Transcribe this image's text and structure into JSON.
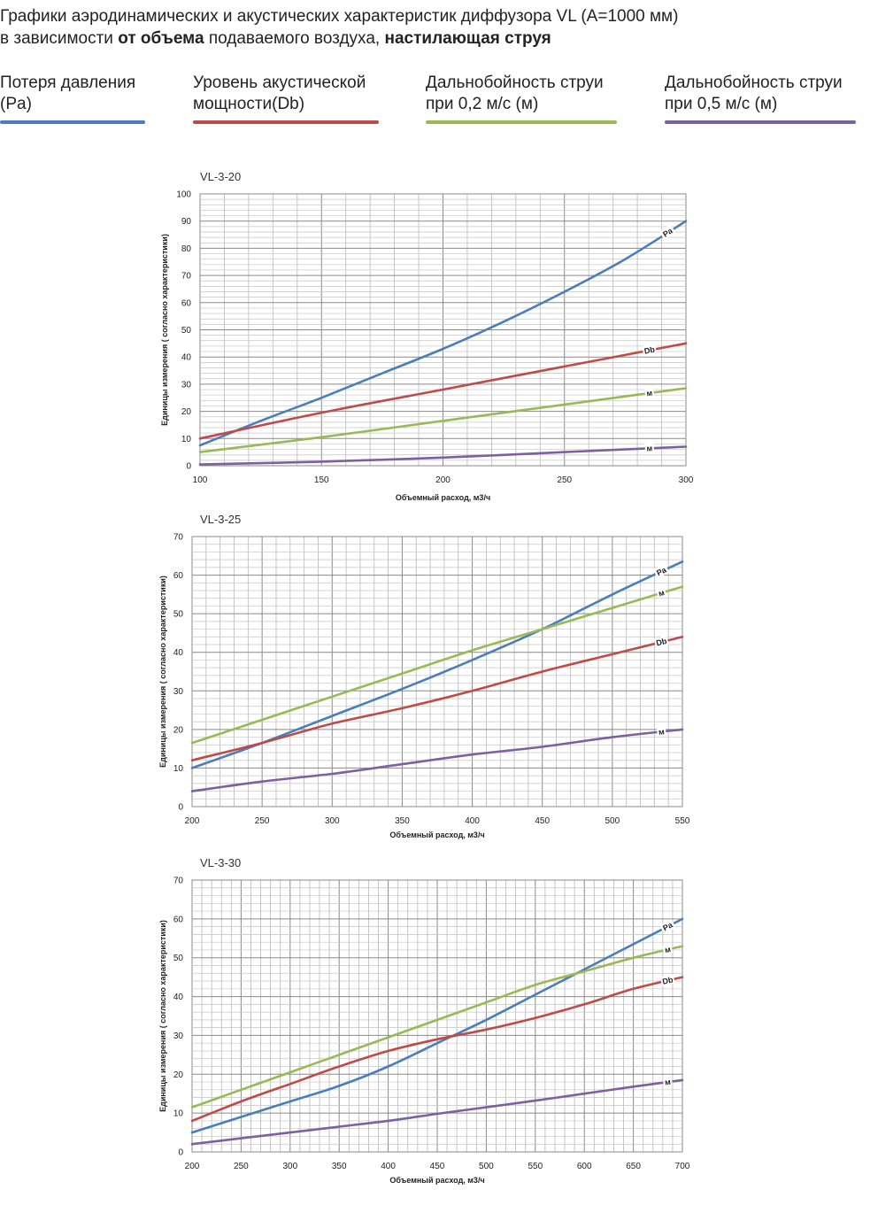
{
  "header": {
    "line1": "Графики аэродинамических и акустических характеристик  диффузора VL (A=1000 мм)",
    "line2_a": "в зависимости ",
    "line2_b": "от объема",
    "line2_c": " подаваемого воздуха, ",
    "line2_d": "настилающая струя"
  },
  "legend": [
    {
      "line1": "Потеря давления",
      "line2": "(Pa)",
      "color": "#4a7ebb"
    },
    {
      "line1": "Уровень акустической",
      "line2": "мощности(Db)",
      "color": "#be4b48"
    },
    {
      "line1": "Дальнобойность струи",
      "line2": "при 0,2 м/с (м)",
      "color": "#98b954"
    },
    {
      "line1": "Дальнобойность струи",
      "line2": "при 0,5 м/с (м)",
      "color": "#7d60a0"
    }
  ],
  "chart_data": [
    {
      "type": "line",
      "title": "VL-3-20",
      "xlabel": "Объемный расход, м3/ч",
      "ylabel": "Единицы измерения ( согласно характеристики)",
      "xlim": [
        100,
        300
      ],
      "ylim": [
        0,
        100
      ],
      "xticks": [
        100,
        150,
        200,
        250,
        300
      ],
      "yticks": [
        0,
        10,
        20,
        30,
        40,
        50,
        60,
        70,
        80,
        90,
        100
      ],
      "grid": true,
      "series": [
        {
          "label": "Pa",
          "color": "#4a7ebb",
          "x": [
            100,
            125,
            150,
            175,
            200,
            225,
            250,
            275,
            300
          ],
          "y": [
            7.5,
            16.5,
            25,
            34,
            43,
            53,
            64,
            76,
            90
          ]
        },
        {
          "label": "Db",
          "color": "#be4b48",
          "x": [
            100,
            150,
            200,
            250,
            300
          ],
          "y": [
            10,
            19.5,
            28,
            36.5,
            45
          ]
        },
        {
          "label": "м",
          "color": "#98b954",
          "x": [
            100,
            150,
            200,
            250,
            300
          ],
          "y": [
            5,
            10.5,
            16.5,
            22.5,
            28.5
          ]
        },
        {
          "label": "м",
          "color": "#7d60a0",
          "x": [
            100,
            150,
            200,
            250,
            300
          ],
          "y": [
            0.5,
            1.5,
            3,
            5,
            7
          ]
        }
      ]
    },
    {
      "type": "line",
      "title": "VL-3-25",
      "xlabel": "Объемный расход, м3/ч",
      "ylabel": "Единицы измерения ( согласно характеристики)",
      "xlim": [
        200,
        550
      ],
      "ylim": [
        0,
        70
      ],
      "xticks": [
        200,
        250,
        300,
        350,
        400,
        450,
        500,
        550
      ],
      "yticks": [
        0,
        10,
        20,
        30,
        40,
        50,
        60,
        70
      ],
      "grid": true,
      "series": [
        {
          "label": "Pa",
          "color": "#4a7ebb",
          "x": [
            200,
            250,
            300,
            350,
            400,
            450,
            500,
            550
          ],
          "y": [
            10,
            16.5,
            23.5,
            30.5,
            38,
            46,
            55,
            63.5
          ]
        },
        {
          "label": "м",
          "color": "#98b954",
          "x": [
            200,
            250,
            300,
            350,
            400,
            450,
            500,
            550
          ],
          "y": [
            16.5,
            22.5,
            28.5,
            34.5,
            40.5,
            46,
            51.5,
            57
          ]
        },
        {
          "label": "Db",
          "color": "#be4b48",
          "x": [
            200,
            250,
            300,
            350,
            400,
            450,
            500,
            550
          ],
          "y": [
            12,
            16.5,
            21.5,
            25.5,
            30,
            35,
            39.5,
            44
          ]
        },
        {
          "label": "м",
          "color": "#7d60a0",
          "x": [
            200,
            250,
            300,
            350,
            400,
            450,
            500,
            550
          ],
          "y": [
            4,
            6.5,
            8.5,
            11,
            13.5,
            15.5,
            18,
            20
          ]
        }
      ]
    },
    {
      "type": "line",
      "title": "VL-3-30",
      "xlabel": "Объемный расход, м3/ч",
      "ylabel": "Единицы измерения ( согласно характеристики)",
      "xlim": [
        200,
        700
      ],
      "ylim": [
        0,
        70
      ],
      "xticks": [
        200,
        250,
        300,
        350,
        400,
        450,
        500,
        550,
        600,
        650,
        700
      ],
      "yticks": [
        0,
        10,
        20,
        30,
        40,
        50,
        60,
        70
      ],
      "grid": true,
      "series": [
        {
          "label": "Pa",
          "color": "#4a7ebb",
          "x": [
            200,
            250,
            300,
            350,
            400,
            450,
            500,
            550,
            600,
            650,
            700
          ],
          "y": [
            5,
            9,
            13,
            17,
            22,
            28,
            34,
            40.5,
            47,
            53.5,
            60
          ]
        },
        {
          "label": "м",
          "color": "#98b954",
          "x": [
            200,
            250,
            300,
            350,
            400,
            450,
            500,
            550,
            600,
            650,
            700
          ],
          "y": [
            11.5,
            16,
            20.5,
            25,
            29.5,
            34,
            38.5,
            43,
            46.5,
            50,
            53
          ]
        },
        {
          "label": "Db",
          "color": "#be4b48",
          "x": [
            200,
            250,
            300,
            350,
            400,
            450,
            500,
            550,
            600,
            650,
            700
          ],
          "y": [
            8,
            13,
            17.5,
            22,
            26,
            29,
            31.5,
            34.5,
            38,
            42,
            45
          ]
        },
        {
          "label": "м",
          "color": "#7d60a0",
          "x": [
            200,
            250,
            300,
            350,
            400,
            450,
            500,
            550,
            600,
            650,
            700
          ],
          "y": [
            2,
            3.5,
            5,
            6.5,
            8,
            9.8,
            11.5,
            13.2,
            15,
            16.8,
            18.5
          ]
        }
      ]
    }
  ]
}
